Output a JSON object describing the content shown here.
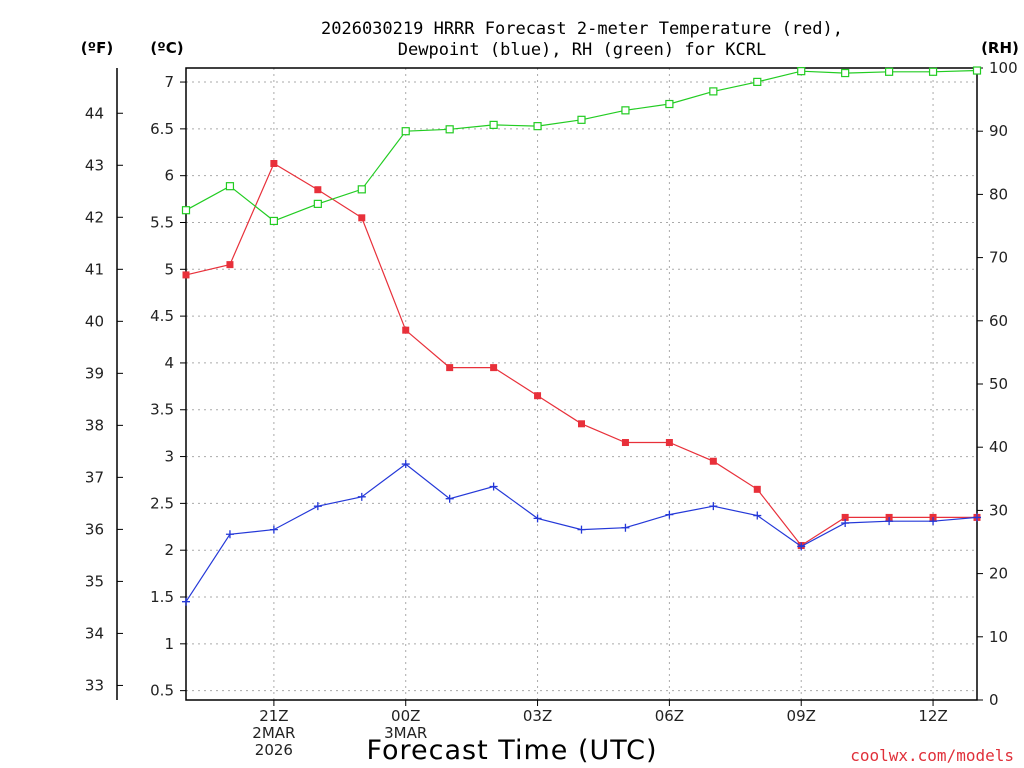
{
  "chart_data": {
    "type": "line",
    "title_line1": "2026030219 HRRR Forecast 2-meter Temperature (red),",
    "title_line2": "Dewpoint (blue), RH (green) for KCRL",
    "xlabel": "Forecast Time (UTC)",
    "credit": "coolwx.com/models",
    "unit_f": "(ºF)",
    "unit_c": "(ºC)",
    "unit_rh": "(RH)",
    "x_hours": [
      0,
      1,
      2,
      3,
      4,
      5,
      6,
      7,
      8,
      9,
      10,
      11,
      12,
      13,
      14,
      15,
      16,
      17,
      18
    ],
    "x_ticks": [
      {
        "hour": 2,
        "lines": [
          "21Z",
          "2MAR",
          "2026"
        ]
      },
      {
        "hour": 5,
        "lines": [
          "00Z",
          "3MAR"
        ]
      },
      {
        "hour": 8,
        "lines": [
          "03Z"
        ]
      },
      {
        "hour": 11,
        "lines": [
          "06Z"
        ]
      },
      {
        "hour": 14,
        "lines": [
          "09Z"
        ]
      },
      {
        "hour": 17,
        "lines": [
          "12Z"
        ]
      }
    ],
    "c_axis": {
      "min": 0.4,
      "max": 7.15,
      "ticks": [
        "0.5",
        "1",
        "1.5",
        "2",
        "2.5",
        "3",
        "3.5",
        "4",
        "4.5",
        "5",
        "5.5",
        "6",
        "6.5",
        "7"
      ]
    },
    "f_axis_ticks": [
      "33",
      "34",
      "35",
      "36",
      "37",
      "38",
      "39",
      "40",
      "41",
      "42",
      "43",
      "44"
    ],
    "rh_axis": {
      "min": 0,
      "max": 100,
      "ticks": [
        "0",
        "10",
        "20",
        "30",
        "40",
        "50",
        "60",
        "70",
        "80",
        "90",
        "100"
      ]
    },
    "series": [
      {
        "name": "Temperature",
        "unit": "C",
        "color": "#e8303a",
        "marker": "filled-square",
        "values": [
          4.94,
          5.05,
          6.13,
          5.85,
          5.55,
          4.35,
          3.95,
          3.95,
          3.65,
          3.35,
          3.15,
          3.15,
          2.95,
          2.65,
          2.05,
          2.35,
          2.35,
          2.35,
          2.35
        ]
      },
      {
        "name": "Dewpoint",
        "unit": "C",
        "color": "#2438d8",
        "marker": "plus",
        "values": [
          1.45,
          2.17,
          2.22,
          2.47,
          2.57,
          2.92,
          2.55,
          2.68,
          2.34,
          2.22,
          2.24,
          2.38,
          2.47,
          2.37,
          2.04,
          2.29,
          2.31,
          2.31,
          2.35
        ]
      },
      {
        "name": "RH",
        "unit": "%",
        "color": "#22cc22",
        "marker": "open-square",
        "values": [
          77.5,
          81.3,
          75.8,
          78.5,
          80.8,
          90,
          90.3,
          91,
          90.8,
          91.8,
          93.3,
          94.3,
          96.3,
          97.8,
          99.5,
          99.2,
          99.4,
          99.4,
          99.6
        ]
      }
    ]
  }
}
